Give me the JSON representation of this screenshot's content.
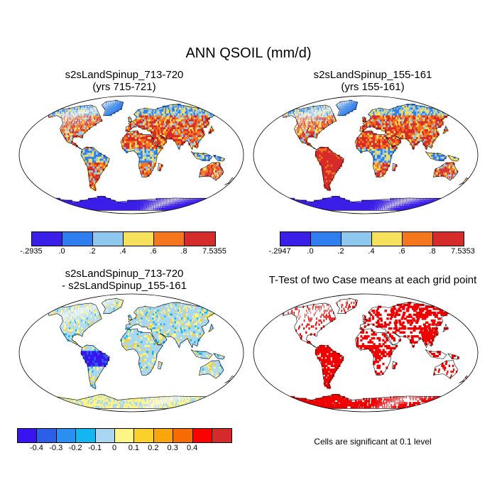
{
  "title": "ANN QSOIL (mm/d)",
  "panels": [
    {
      "title_line1": "s2sLandSpinup_713-720",
      "title_line2": "(yrs 715-721)"
    },
    {
      "title_line1": "s2sLandSpinup_155-161",
      "title_line2": "(yrs 155-161)"
    },
    {
      "title_line1": "s2sLandSpinup_713-720",
      "title_line2": "- s2sLandSpinup_155-161"
    },
    {
      "title_line1": "T-Test of two Case means at each grid point"
    }
  ],
  "colorbar1": {
    "colors": [
      "#3b1ee8",
      "#2f7ef0",
      "#8fc8ee",
      "#f7e05c",
      "#f5761c",
      "#d62b2b"
    ],
    "labels": [
      "-.2935",
      ".0",
      ".2",
      ".4",
      ".6",
      ".8",
      "7.5355"
    ]
  },
  "colorbar2": {
    "colors": [
      "#3b1ee8",
      "#2f7ef0",
      "#8fc8ee",
      "#f7e05c",
      "#f5761c",
      "#d62b2b"
    ],
    "labels": [
      "-.2947",
      ".0",
      ".2",
      ".4",
      ".6",
      ".8",
      "7.5353"
    ]
  },
  "colorbar3": {
    "colors": [
      "#3a14f0",
      "#2b5fe8",
      "#2b8ff2",
      "#14b6f2",
      "#a9d7f2",
      "#fff486",
      "#fcd02a",
      "#f9a60a",
      "#f76b00",
      "#ff0000",
      "#d42a2a"
    ],
    "labels": [
      "-0.4",
      "-0.3",
      "-0.2",
      "-0.1",
      "0",
      "0.1",
      "0.2",
      "0.3",
      "0.4"
    ]
  },
  "significance_color": "#ee0000",
  "note": "Cells are significant at 0.1 level"
}
